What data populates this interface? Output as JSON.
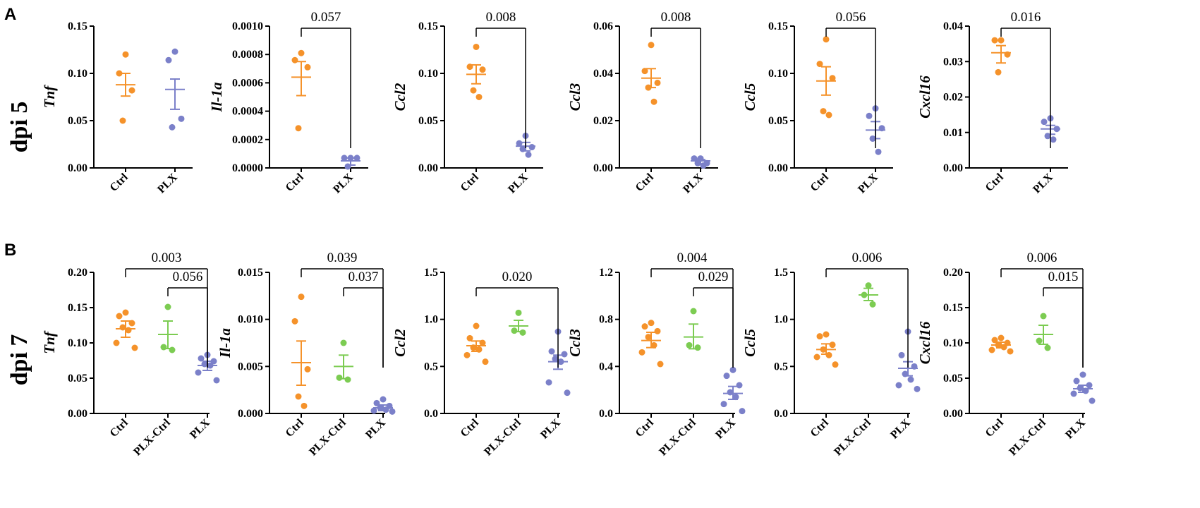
{
  "panel_labels": [
    "A",
    "B"
  ],
  "row_labels": [
    "dpi 5",
    "dpi 7"
  ],
  "colors": {
    "Ctrl": "#f5922a",
    "PLX-Ctrl": "#7ccc52",
    "PLX": "#7b80c9",
    "axis": "#000000"
  },
  "chart_data": [
    {
      "type": "scatter",
      "row": 0,
      "ylabel": "Tnf",
      "ylim": [
        0,
        0.15
      ],
      "yticks": [
        "0.00",
        "0.05",
        "0.10",
        "0.15"
      ],
      "categories": [
        "Ctrl",
        "PLX"
      ],
      "series": [
        {
          "name": "Ctrl",
          "points": [
            0.12,
            0.1,
            0.082,
            0.05
          ],
          "mean": 0.088,
          "err": [
            0.076,
            0.1
          ]
        },
        {
          "name": "PLX",
          "points": [
            0.123,
            0.114,
            0.052,
            0.043
          ],
          "mean": 0.083,
          "err": [
            0.062,
            0.094
          ]
        }
      ],
      "comparisons": []
    },
    {
      "type": "scatter",
      "row": 0,
      "ylabel": "Il-1a",
      "ylim": [
        0,
        0.001
      ],
      "yticks": [
        "0.0000",
        "0.0002",
        "0.0004",
        "0.0006",
        "0.0008",
        "0.0010"
      ],
      "categories": [
        "Ctrl",
        "PLX"
      ],
      "series": [
        {
          "name": "Ctrl",
          "points": [
            0.00081,
            0.00076,
            0.00071,
            0.00028
          ],
          "mean": 0.00064,
          "err": [
            0.00051,
            0.00075
          ]
        },
        {
          "name": "PLX",
          "points": [
            7e-05,
            7e-05,
            7e-05,
            1e-05
          ],
          "mean": 5e-05,
          "err": [
            2e-05,
            7e-05
          ]
        }
      ],
      "comparisons": [
        {
          "from": 0,
          "to": 1,
          "label": "0.057",
          "level": 0
        }
      ]
    },
    {
      "type": "scatter",
      "row": 0,
      "ylabel": "Ccl2",
      "ylim": [
        0,
        0.15
      ],
      "yticks": [
        "0.00",
        "0.05",
        "0.10",
        "0.15"
      ],
      "categories": [
        "Ctrl",
        "PLX"
      ],
      "series": [
        {
          "name": "Ctrl",
          "points": [
            0.128,
            0.107,
            0.104,
            0.082,
            0.075
          ],
          "mean": 0.099,
          "err": [
            0.089,
            0.109
          ]
        },
        {
          "name": "PLX",
          "points": [
            0.034,
            0.026,
            0.022,
            0.02,
            0.014
          ],
          "mean": 0.023,
          "err": [
            0.018,
            0.027
          ]
        }
      ],
      "comparisons": [
        {
          "from": 0,
          "to": 1,
          "label": "0.008",
          "level": 0
        }
      ]
    },
    {
      "type": "scatter",
      "row": 0,
      "ylabel": "Ccl3",
      "ylim": [
        0,
        0.06
      ],
      "yticks": [
        "0.00",
        "0.02",
        "0.04",
        "0.06"
      ],
      "categories": [
        "Ctrl",
        "PLX"
      ],
      "series": [
        {
          "name": "Ctrl",
          "points": [
            0.052,
            0.041,
            0.036,
            0.034,
            0.028
          ],
          "mean": 0.038,
          "err": [
            0.034,
            0.042
          ]
        },
        {
          "name": "PLX",
          "points": [
            0.004,
            0.004,
            0.002,
            0.002,
            0.001
          ],
          "mean": 0.003,
          "err": [
            0.0015,
            0.0035
          ]
        }
      ],
      "comparisons": [
        {
          "from": 0,
          "to": 1,
          "label": "0.008",
          "level": 0
        }
      ]
    },
    {
      "type": "scatter",
      "row": 0,
      "ylabel": "Ccl5",
      "ylim": [
        0,
        0.15
      ],
      "yticks": [
        "0.00",
        "0.05",
        "0.10",
        "0.15"
      ],
      "categories": [
        "Ctrl",
        "PLX"
      ],
      "series": [
        {
          "name": "Ctrl",
          "points": [
            0.136,
            0.11,
            0.095,
            0.06,
            0.056
          ],
          "mean": 0.092,
          "err": [
            0.077,
            0.107
          ]
        },
        {
          "name": "PLX",
          "points": [
            0.063,
            0.055,
            0.042,
            0.031,
            0.017
          ],
          "mean": 0.04,
          "err": [
            0.031,
            0.049
          ]
        }
      ],
      "comparisons": [
        {
          "from": 0,
          "to": 1,
          "label": "0.056",
          "level": 0
        }
      ]
    },
    {
      "type": "scatter",
      "row": 0,
      "ylabel": "Cxcl16",
      "ylim": [
        0,
        0.04
      ],
      "yticks": [
        "0.00",
        "0.01",
        "0.02",
        "0.03",
        "0.04"
      ],
      "categories": [
        "Ctrl",
        "PLX"
      ],
      "series": [
        {
          "name": "Ctrl",
          "points": [
            0.036,
            0.036,
            0.032,
            0.027
          ],
          "mean": 0.0325,
          "err": [
            0.0296,
            0.0345
          ]
        },
        {
          "name": "PLX",
          "points": [
            0.014,
            0.013,
            0.011,
            0.009,
            0.008
          ],
          "mean": 0.011,
          "err": [
            0.0095,
            0.012
          ]
        }
      ],
      "comparisons": [
        {
          "from": 0,
          "to": 1,
          "label": "0.016",
          "level": 0
        }
      ]
    },
    {
      "type": "scatter",
      "row": 1,
      "ylabel": "Tnf",
      "ylim": [
        0,
        0.2
      ],
      "yticks": [
        "0.00",
        "0.05",
        "0.10",
        "0.15",
        "0.20"
      ],
      "categories": [
        "Ctrl",
        "PLX-Ctrl",
        "PLX"
      ],
      "series": [
        {
          "name": "Ctrl",
          "points": [
            0.143,
            0.138,
            0.128,
            0.122,
            0.118,
            0.1,
            0.093
          ],
          "mean": 0.12,
          "err": [
            0.108,
            0.131
          ]
        },
        {
          "name": "PLX-Ctrl",
          "points": [
            0.151,
            0.094,
            0.09
          ],
          "mean": 0.112,
          "err": [
            0.092,
            0.131
          ]
        },
        {
          "name": "PLX",
          "points": [
            0.083,
            0.078,
            0.074,
            0.07,
            0.068,
            0.058,
            0.047
          ],
          "mean": 0.068,
          "err": [
            0.061,
            0.074
          ]
        }
      ],
      "comparisons": [
        {
          "from": 0,
          "to": 2,
          "label": "0.003",
          "level": 1
        },
        {
          "from": 1,
          "to": 2,
          "label": "0.056",
          "level": 0
        }
      ]
    },
    {
      "type": "scatter",
      "row": 1,
      "ylabel": "Il-1a",
      "ylim": [
        0,
        0.015
      ],
      "yticks": [
        "0.000",
        "0.005",
        "0.010",
        "0.015"
      ],
      "categories": [
        "Ctrl",
        "PLX-Ctrl",
        "PLX"
      ],
      "series": [
        {
          "name": "Ctrl",
          "points": [
            0.0124,
            0.0098,
            0.0047,
            0.0018,
            0.0008
          ],
          "mean": 0.0054,
          "err": [
            0.003,
            0.0077
          ]
        },
        {
          "name": "PLX-Ctrl",
          "points": [
            0.0075,
            0.0038,
            0.0036
          ],
          "mean": 0.005,
          "err": [
            0.0037,
            0.0062
          ]
        },
        {
          "name": "PLX",
          "points": [
            0.0015,
            0.0011,
            0.0008,
            0.0006,
            0.0004,
            0.0003,
            0.0002
          ],
          "mean": 0.0006,
          "err": [
            0.0003,
            0.0009
          ]
        }
      ],
      "comparisons": [
        {
          "from": 0,
          "to": 2,
          "label": "0.039",
          "level": 1
        },
        {
          "from": 1,
          "to": 2,
          "label": "0.037",
          "level": 0
        }
      ]
    },
    {
      "type": "scatter",
      "row": 1,
      "ylabel": "Ccl2",
      "ylim": [
        0,
        1.5
      ],
      "yticks": [
        "0.0",
        "0.5",
        "1.0",
        "1.5"
      ],
      "categories": [
        "Ctrl",
        "PLX-Ctrl",
        "PLX"
      ],
      "series": [
        {
          "name": "Ctrl",
          "points": [
            0.93,
            0.8,
            0.75,
            0.7,
            0.68,
            0.62,
            0.55
          ],
          "mean": 0.72,
          "err": [
            0.66,
            0.77
          ]
        },
        {
          "name": "PLX-Ctrl",
          "points": [
            1.07,
            0.88,
            0.86
          ],
          "mean": 0.93,
          "err": [
            0.87,
            0.99
          ]
        },
        {
          "name": "PLX",
          "points": [
            0.87,
            0.66,
            0.63,
            0.58,
            0.55,
            0.33,
            0.22
          ],
          "mean": 0.55,
          "err": [
            0.47,
            0.62
          ]
        }
      ],
      "comparisons": [
        {
          "from": 0,
          "to": 2,
          "label": "0.020",
          "level": 0
        }
      ]
    },
    {
      "type": "scatter",
      "row": 1,
      "ylabel": "Ccl3",
      "ylim": [
        0,
        1.2
      ],
      "yticks": [
        "0.0",
        "0.4",
        "0.8",
        "1.2"
      ],
      "categories": [
        "Ctrl",
        "PLX-Ctrl",
        "PLX"
      ],
      "series": [
        {
          "name": "Ctrl",
          "points": [
            0.77,
            0.74,
            0.7,
            0.65,
            0.58,
            0.52,
            0.42
          ],
          "mean": 0.62,
          "err": [
            0.56,
            0.69
          ]
        },
        {
          "name": "PLX-Ctrl",
          "points": [
            0.87,
            0.58,
            0.56
          ],
          "mean": 0.65,
          "err": [
            0.55,
            0.76
          ]
        },
        {
          "name": "PLX",
          "points": [
            0.37,
            0.32,
            0.24,
            0.18,
            0.14,
            0.08,
            0.02
          ],
          "mean": 0.17,
          "err": [
            0.12,
            0.23
          ]
        }
      ],
      "comparisons": [
        {
          "from": 0,
          "to": 2,
          "label": "0.004",
          "level": 1
        },
        {
          "from": 1,
          "to": 2,
          "label": "0.029",
          "level": 0
        }
      ]
    },
    {
      "type": "scatter",
      "row": 1,
      "ylabel": "Ccl5",
      "ylim": [
        0,
        1.5
      ],
      "yticks": [
        "0.0",
        "0.5",
        "1.0",
        "1.5"
      ],
      "categories": [
        "Ctrl",
        "PLX-Ctrl",
        "PLX"
      ],
      "series": [
        {
          "name": "Ctrl",
          "points": [
            0.84,
            0.82,
            0.73,
            0.68,
            0.62,
            0.6,
            0.52
          ],
          "mean": 0.68,
          "err": [
            0.63,
            0.74
          ]
        },
        {
          "name": "PLX-Ctrl",
          "points": [
            1.36,
            1.26,
            1.16
          ],
          "mean": 1.26,
          "err": [
            1.2,
            1.33
          ]
        },
        {
          "name": "PLX",
          "points": [
            0.87,
            0.62,
            0.5,
            0.42,
            0.36,
            0.3,
            0.26
          ],
          "mean": 0.48,
          "err": [
            0.4,
            0.55
          ]
        }
      ],
      "comparisons": [
        {
          "from": 0,
          "to": 2,
          "label": "0.006",
          "level": 1
        }
      ]
    },
    {
      "type": "scatter",
      "row": 1,
      "ylabel": "Cxcl16",
      "ylim": [
        0,
        0.2
      ],
      "yticks": [
        "0.00",
        "0.05",
        "0.10",
        "0.15",
        "0.20"
      ],
      "categories": [
        "Ctrl",
        "PLX-Ctrl",
        "PLX"
      ],
      "series": [
        {
          "name": "Ctrl",
          "points": [
            0.107,
            0.104,
            0.1,
            0.097,
            0.094,
            0.09,
            0.088
          ],
          "mean": 0.097,
          "err": [
            0.093,
            0.101
          ]
        },
        {
          "name": "PLX-Ctrl",
          "points": [
            0.138,
            0.103,
            0.093
          ],
          "mean": 0.112,
          "err": [
            0.098,
            0.125
          ]
        },
        {
          "name": "PLX",
          "points": [
            0.055,
            0.046,
            0.04,
            0.036,
            0.032,
            0.028,
            0.018
          ],
          "mean": 0.035,
          "err": [
            0.03,
            0.04
          ]
        }
      ],
      "comparisons": [
        {
          "from": 0,
          "to": 2,
          "label": "0.006",
          "level": 1
        },
        {
          "from": 1,
          "to": 2,
          "label": "0.015",
          "level": 0
        }
      ]
    }
  ]
}
